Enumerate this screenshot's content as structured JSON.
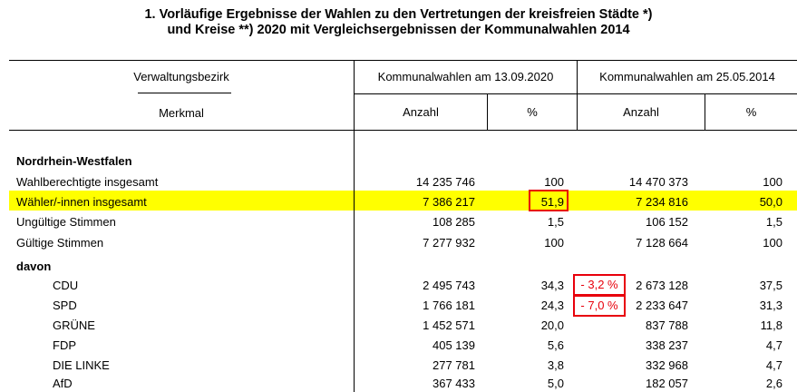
{
  "title": {
    "line1": "1. Vorläufige Ergebnisse der Wahlen zu den Vertretungen der kreisfreien Städte *)",
    "line2": "und Kreise **) 2020 mit Vergleichsergebnissen der Kommunalwahlen 2014"
  },
  "header": {
    "bezirk": "Verwaltungsbezirk",
    "merkmal": "Merkmal",
    "election_2020": "Kommunalwahlen am 13.09.2020",
    "election_2014": "Kommunalwahlen am 25.05.2014",
    "anzahl": "Anzahl",
    "percent": "%"
  },
  "section_title": "Nordrhein-Westfalen",
  "rows": [
    {
      "label": "Wahlberechtigte insgesamt",
      "a2020": "14 235 746",
      "p2020": "100",
      "a2014": "14 470 373",
      "p2014": "100"
    },
    {
      "label": "Wähler/-innen insgesamt",
      "a2020": "7 386 217",
      "p2020": "51,9",
      "a2014": "7 234 816",
      "p2014": "50,0"
    },
    {
      "label": "Ungültige Stimmen",
      "a2020": "108 285",
      "p2020": "1,5",
      "a2014": "106 152",
      "p2014": "1,5"
    },
    {
      "label": "Gültige Stimmen",
      "a2020": "7 277 932",
      "p2020": "100",
      "a2014": "7 128 664",
      "p2014": "100"
    }
  ],
  "davon_label": "davon",
  "parties": [
    {
      "label": "CDU",
      "a2020": "2 495 743",
      "p2020": "34,3",
      "a2014": "2 673 128",
      "p2014": "37,5",
      "change": "- 3,2 %"
    },
    {
      "label": "SPD",
      "a2020": "1 766 181",
      "p2020": "24,3",
      "a2014": "2 233 647",
      "p2014": "31,3",
      "change": "- 7,0 %"
    },
    {
      "label": "GRÜNE",
      "a2020": "1 452 571",
      "p2020": "20,0",
      "a2014": "837 788",
      "p2014": "11,8"
    },
    {
      "label": "FDP",
      "a2020": "405 139",
      "p2020": "5,6",
      "a2014": "338 237",
      "p2014": "4,7"
    },
    {
      "label": "DIE LINKE",
      "a2020": "277 781",
      "p2020": "3,8",
      "a2014": "332 968",
      "p2014": "4,7"
    },
    {
      "label": "AfD",
      "a2020": "367 433",
      "p2020": "5,0",
      "a2014": "182 057",
      "p2014": "2,6"
    }
  ],
  "colors": {
    "highlight": "#ffff00",
    "annotation": "#e8000b"
  }
}
